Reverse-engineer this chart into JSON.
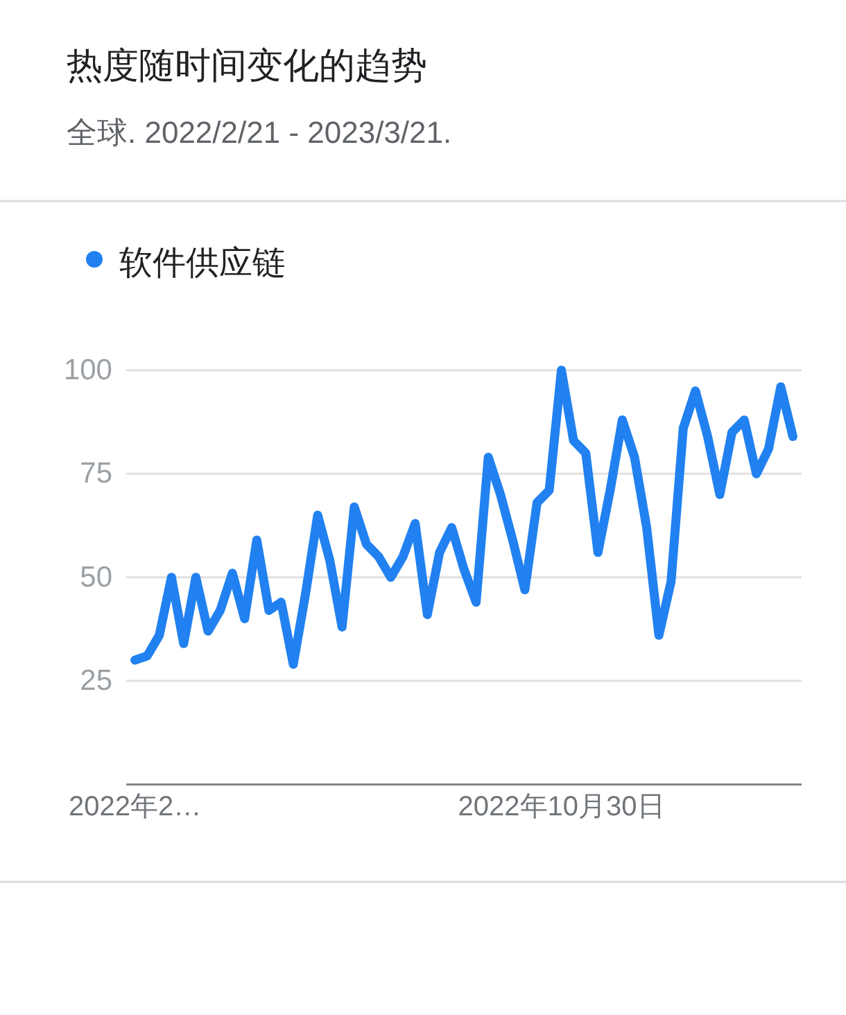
{
  "chart_data": {
    "type": "line",
    "title": "热度随时间变化的趋势",
    "subtitle": "全球. 2022/2/21 - 2023/3/21.",
    "x": [
      "2022-02-27",
      "2022-03-06",
      "2022-03-13",
      "2022-03-20",
      "2022-03-27",
      "2022-04-03",
      "2022-04-10",
      "2022-04-17",
      "2022-04-24",
      "2022-05-01",
      "2022-05-08",
      "2022-05-15",
      "2022-05-22",
      "2022-05-29",
      "2022-06-05",
      "2022-06-12",
      "2022-06-19",
      "2022-06-26",
      "2022-07-03",
      "2022-07-10",
      "2022-07-17",
      "2022-07-24",
      "2022-07-31",
      "2022-08-07",
      "2022-08-14",
      "2022-08-21",
      "2022-08-28",
      "2022-09-04",
      "2022-09-11",
      "2022-09-18",
      "2022-09-25",
      "2022-10-02",
      "2022-10-09",
      "2022-10-16",
      "2022-10-23",
      "2022-10-30",
      "2022-11-06",
      "2022-11-13",
      "2022-11-20",
      "2022-11-27",
      "2022-12-04",
      "2022-12-11",
      "2022-12-18",
      "2022-12-25",
      "2023-01-01",
      "2023-01-08",
      "2023-01-15",
      "2023-01-22",
      "2023-01-29",
      "2023-02-05",
      "2023-02-12",
      "2023-02-19",
      "2023-02-26",
      "2023-03-05",
      "2023-03-12"
    ],
    "series": [
      {
        "name": "软件供应链",
        "color": "#2181f0",
        "values": [
          30,
          31,
          36,
          50,
          34,
          50,
          37,
          42,
          51,
          40,
          59,
          42,
          44,
          29,
          46,
          65,
          54,
          38,
          67,
          58,
          55,
          50,
          55,
          63,
          41,
          56,
          62,
          52,
          44,
          79,
          70,
          59,
          47,
          68,
          71,
          100,
          83,
          80,
          56,
          71,
          88,
          79,
          62,
          36,
          49,
          86,
          95,
          84,
          70,
          85,
          88,
          75,
          81,
          96,
          84
        ]
      }
    ],
    "xlim": [
      "2022-02-22",
      "2023-03-17"
    ],
    "xticks": [
      {
        "value": "2022-02-27",
        "label": "2022年2…"
      },
      {
        "value": "2022-10-30",
        "label": "2022年10月30日"
      }
    ],
    "ylim": [
      0,
      100
    ],
    "yticks": [
      25,
      50,
      75,
      100
    ],
    "grid": "y",
    "legend": "top left"
  }
}
